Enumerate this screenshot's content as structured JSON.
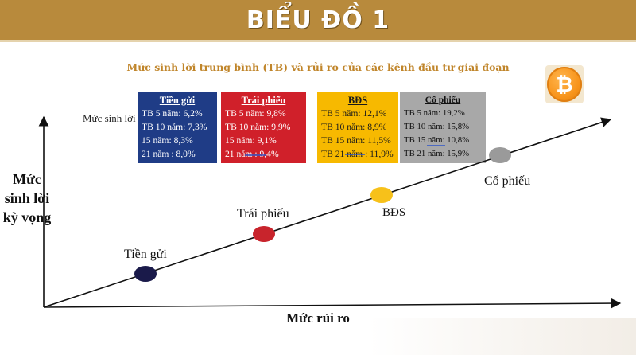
{
  "banner": {
    "title": "BIỂU ĐỒ 1"
  },
  "subtitle": "Mức sinh lời trung bình (TB) và rủi ro của các kênh đầu tư giai đoạn",
  "legend_y_small": "Mức sinh lời",
  "boxes": [
    {
      "title": "Tiền gửi",
      "lines": [
        "TB 5 năm: 6,2%",
        "TB 10 năm: 7,3%",
        "15 năm: 8,3%",
        "21 năm : 8,0%"
      ],
      "color": "#1f3c86"
    },
    {
      "title": "Trái phiếu",
      "lines": [
        "TB 5 năm: 9,8%",
        "TB 10 năm: 9,9%",
        "15 năm: 9,1%",
        "21 năm : 9,4%"
      ],
      "color": "#d0202a"
    },
    {
      "title": "BĐS",
      "lines": [
        "TB 5 năm: 12,1%",
        "TB 10 năm: 8,9%",
        "TB 15 năm: 11,5%",
        "TB 21 năm : 11,9%"
      ],
      "color": "#f7b900"
    },
    {
      "title": "Cổ phiếu",
      "lines": [
        "TB 5 năm: 19,2%",
        "TB 10 năm: 15,8%",
        "TB 15 năm: 10,8%",
        "TB 21 năm: 15,9%"
      ],
      "color": "#a8a8a8"
    }
  ],
  "points": [
    {
      "label": "Tiền gửi",
      "color": "#1a1a4a"
    },
    {
      "label": "Trái phiếu",
      "color": "#c8242c"
    },
    {
      "label": "BĐS",
      "color": "#f7c11a"
    },
    {
      "label": "Cổ phiếu",
      "color": "#9a9a9a"
    }
  ],
  "y_axis_title": "Mức sinh lời kỳ vọng",
  "x_axis_title": "Mức rủi ro",
  "coin_icon": "bitcoin-icon"
}
